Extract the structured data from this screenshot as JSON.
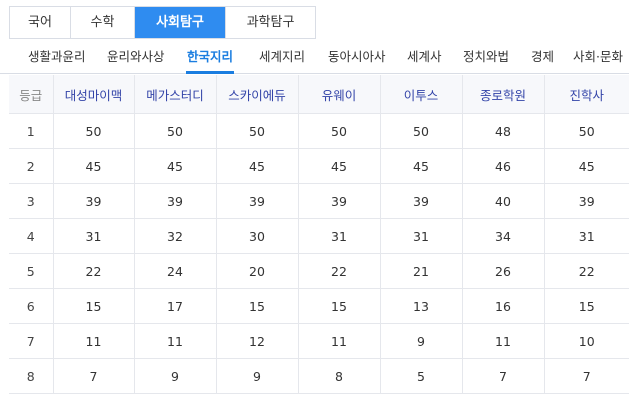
{
  "main_tabs": [
    {
      "label": "국어",
      "active": false
    },
    {
      "label": "수학",
      "active": false
    },
    {
      "label": "사회탐구",
      "active": true
    },
    {
      "label": "과학탐구",
      "active": false
    }
  ],
  "sub_tabs": [
    {
      "label": "생활과윤리",
      "active": false
    },
    {
      "label": "윤리와사상",
      "active": false
    },
    {
      "label": "한국지리",
      "active": true
    },
    {
      "label": "세계지리",
      "active": false
    },
    {
      "label": "동아시아사",
      "active": false
    },
    {
      "label": "세계사",
      "active": false
    },
    {
      "label": "정치와법",
      "active": false
    },
    {
      "label": "경제",
      "active": false
    },
    {
      "label": "사회·문화",
      "active": false
    }
  ],
  "table": {
    "headers": [
      "등급",
      "대성마이맥",
      "메가스터디",
      "스카이에듀",
      "유웨이",
      "이투스",
      "종로학원",
      "진학사"
    ],
    "rows": [
      [
        "1",
        "50",
        "50",
        "50",
        "50",
        "50",
        "48",
        "50"
      ],
      [
        "2",
        "45",
        "45",
        "45",
        "45",
        "45",
        "46",
        "45"
      ],
      [
        "3",
        "39",
        "39",
        "39",
        "39",
        "39",
        "40",
        "39"
      ],
      [
        "4",
        "31",
        "32",
        "30",
        "31",
        "31",
        "34",
        "31"
      ],
      [
        "5",
        "22",
        "24",
        "20",
        "22",
        "21",
        "26",
        "22"
      ],
      [
        "6",
        "15",
        "17",
        "15",
        "15",
        "13",
        "16",
        "15"
      ],
      [
        "7",
        "11",
        "11",
        "12",
        "11",
        "9",
        "11",
        "10"
      ],
      [
        "8",
        "7",
        "9",
        "9",
        "8",
        "5",
        "7",
        "7"
      ]
    ]
  },
  "colors": {
    "accent": "#2f8cf0",
    "active_subtab": "#1a7de0",
    "header_text": "#3344a8",
    "border": "#d9dde5"
  }
}
